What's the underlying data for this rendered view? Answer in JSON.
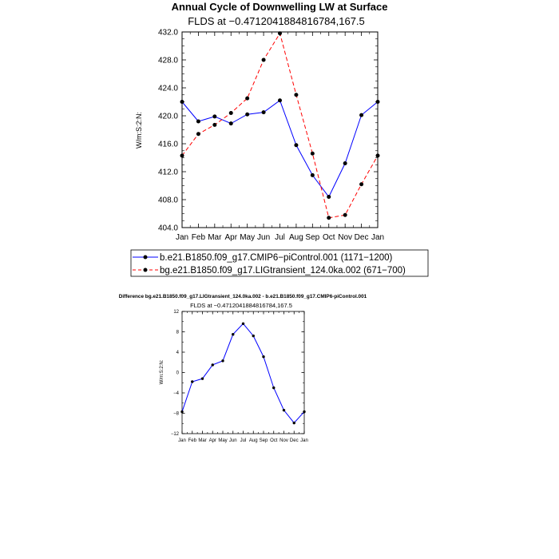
{
  "title": "Annual Cycle of Downwelling LW at Surface",
  "colors": {
    "series1": "#0000ff",
    "series2": "#ff0000",
    "marker": "#000000",
    "axis": "#000000"
  },
  "chart_data": [
    {
      "type": "line",
      "subtitle": "FLDS at −0.4712041884816784,167.5",
      "xlabel": "",
      "ylabel": "W/m:S:2:N:",
      "categories": [
        "Jan",
        "Feb",
        "Mar",
        "Apr",
        "May",
        "Jun",
        "Jul",
        "Aug",
        "Sep",
        "Oct",
        "Nov",
        "Dec",
        "Jan"
      ],
      "ylim": [
        404.0,
        432.0
      ],
      "yticks": [
        404.0,
        408.0,
        412.0,
        416.0,
        420.0,
        424.0,
        428.0,
        432.0
      ],
      "ytick_labels": [
        "404.0",
        "408.0",
        "412.0",
        "416.0",
        "420.0",
        "424.0",
        "428.0",
        "432.0"
      ],
      "legend_position": "bottom",
      "grid": false,
      "series": [
        {
          "name": "b.e21.B1850.f09_g17.CMIP6−piControl.001 (1171−1200)",
          "style": "solid",
          "color": "#0000ff",
          "values": [
            422.0,
            419.2,
            419.9,
            418.9,
            420.2,
            420.5,
            422.2,
            415.8,
            411.5,
            408.4,
            413.2,
            420.1,
            422.0
          ]
        },
        {
          "name": "bg.e21.B1850.f09_g17.LIGtransient_124.0ka.002 (671−700)",
          "style": "dashed",
          "color": "#ff0000",
          "values": [
            414.3,
            417.4,
            418.7,
            420.4,
            422.5,
            428.0,
            431.8,
            423.0,
            414.6,
            405.4,
            405.8,
            410.2,
            414.3
          ]
        }
      ]
    },
    {
      "type": "line",
      "title": "Difference bg.e21.B1850.f09_g17.LIGtransient_124.0ka.002 - b.e21.B1850.f09_g17.CMIP6-piControl.001",
      "subtitle": "FLDS at −0.4712041884816784,167.5",
      "xlabel": "",
      "ylabel": "W/m:S:2:N:",
      "categories": [
        "Jan",
        "Feb",
        "Mar",
        "Apr",
        "May",
        "Jun",
        "Jul",
        "Aug",
        "Sep",
        "Oct",
        "Nov",
        "Dec",
        "Jan"
      ],
      "ylim": [
        -12,
        12
      ],
      "yticks": [
        -12,
        -8,
        -4,
        0,
        4,
        8,
        12
      ],
      "ytick_labels": [
        "−12",
        "−8",
        "−4",
        "0",
        "4",
        "8",
        "12"
      ],
      "grid": false,
      "series": [
        {
          "style": "solid",
          "color": "#0000ff",
          "values": [
            -7.7,
            -1.8,
            -1.2,
            1.5,
            2.3,
            7.5,
            9.6,
            7.2,
            3.1,
            -3.0,
            -7.4,
            -9.9,
            -7.7
          ]
        }
      ]
    }
  ]
}
